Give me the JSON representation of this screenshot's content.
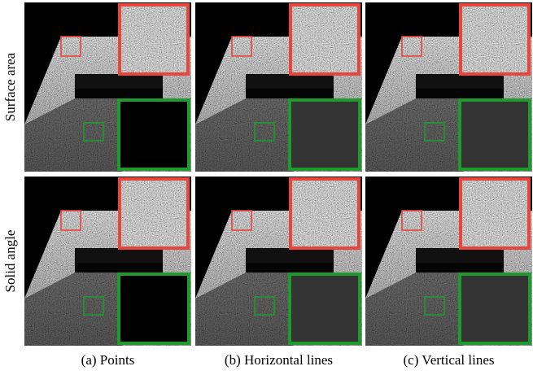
{
  "row_labels": [
    "Surface area",
    "Solid angle"
  ],
  "captions": [
    "(a) Points",
    "(b) Horizontal lines",
    "(c) Vertical lines"
  ]
}
